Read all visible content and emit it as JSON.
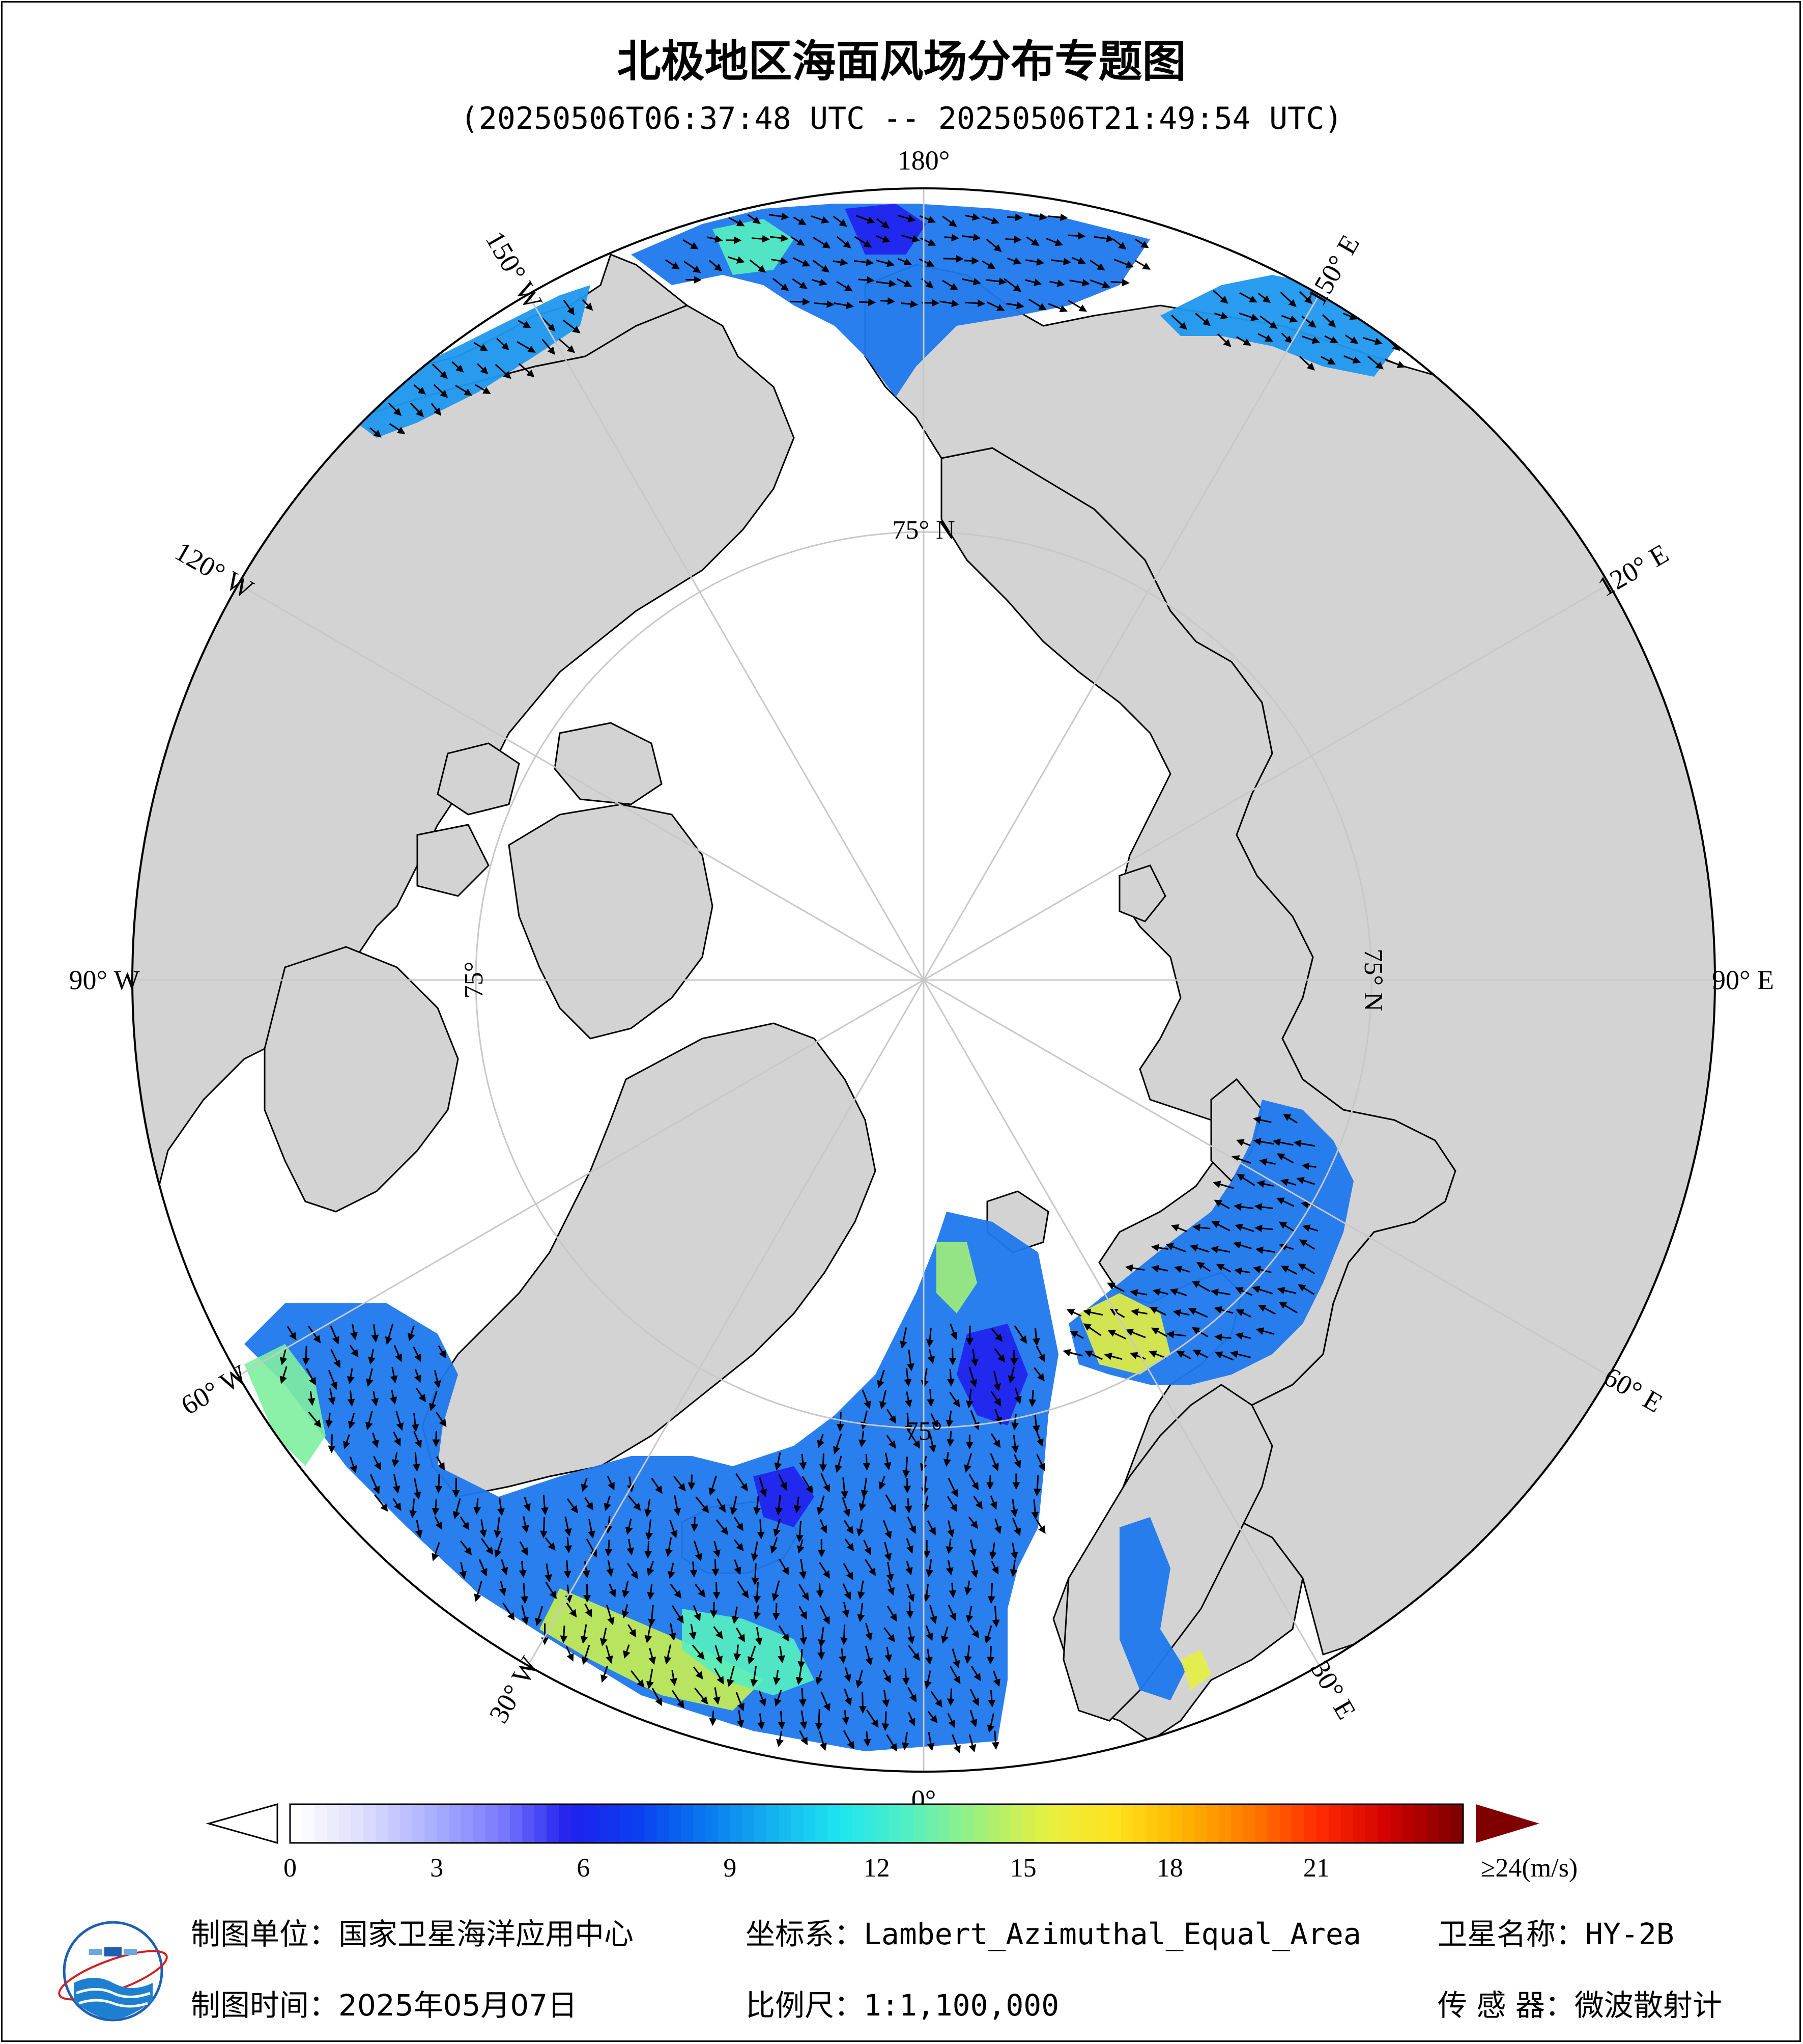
{
  "map": {
    "title": "北极地区海面风场分布专题图",
    "time_range": "(20250506T06:37:48 UTC -- 20250506T21:49:54 UTC)",
    "longitude_labels": [
      {
        "text": "180°",
        "lon": 180
      },
      {
        "text": "150° E",
        "lon": 150
      },
      {
        "text": "120° E",
        "lon": 120
      },
      {
        "text": "90° E",
        "lon": 90
      },
      {
        "text": "60° E",
        "lon": 60
      },
      {
        "text": "30° E",
        "lon": 30
      },
      {
        "text": "0°",
        "lon": 0
      },
      {
        "text": "30° W",
        "lon": -30
      },
      {
        "text": "60° W",
        "lon": -60
      },
      {
        "text": "90° W",
        "lon": -90
      },
      {
        "text": "120° W",
        "lon": -120
      },
      {
        "text": "150° W",
        "lon": -150
      }
    ],
    "latitude_labels": [
      {
        "text": "75° N",
        "lon": 180
      },
      {
        "text": "75° N",
        "lon": 90
      },
      {
        "text": "75°",
        "lon": 0
      },
      {
        "text": "75°",
        "lon": -90
      }
    ],
    "colors": {
      "ocean_ice": "#ffffff",
      "land": "#d3d3d3",
      "coast": "#000000",
      "grid": "#c8c8c8"
    }
  },
  "colorbar": {
    "unit_label": "≥24(m/s)",
    "ticks": [
      "0",
      "3",
      "6",
      "9",
      "12",
      "15",
      "18",
      "21"
    ],
    "range": [
      0,
      24
    ],
    "stops": [
      "#ffffff",
      "#dcdcff",
      "#aab0ff",
      "#7a7aff",
      "#2020ee",
      "#0a3ff0",
      "#0a78f0",
      "#14b4f0",
      "#1ee6f0",
      "#55f0c0",
      "#a0f07a",
      "#e6f040",
      "#ffe21e",
      "#ffb400",
      "#ff7800",
      "#ff2a00",
      "#d20000",
      "#800000"
    ]
  },
  "footer": {
    "org_label": "制图单位：",
    "org_value": "国家卫星海洋应用中心",
    "crs_label": "坐标系：",
    "crs_value": "Lambert_Azimuthal_Equal_Area",
    "sat_label": "卫星名称：",
    "sat_value": "HY-2B",
    "date_label": "制图时间：",
    "date_value": "2025年05月07日",
    "scale_label": "比例尺：",
    "scale_value": "1:1,100,000",
    "sensor_label": "传 感 器：",
    "sensor_value": "微波散射计"
  }
}
